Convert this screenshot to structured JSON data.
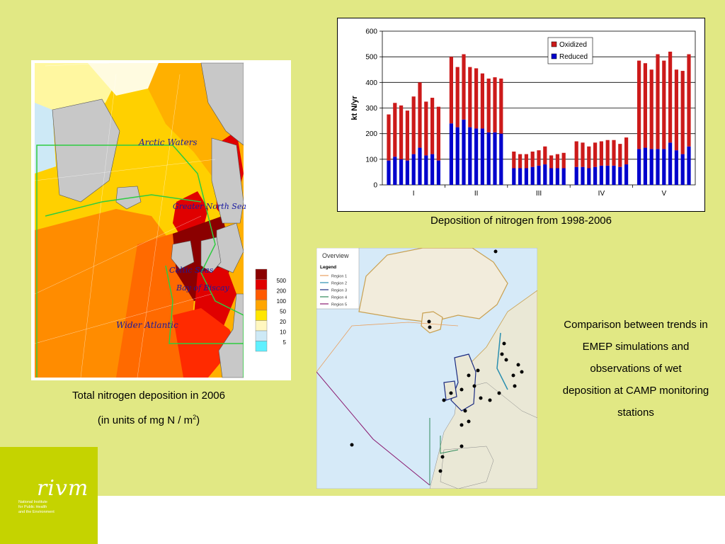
{
  "map1": {
    "labels": [
      "Arctic Waters",
      "Greater North Sea",
      "Celtic Seas",
      "Bay of Biscay",
      "Wider Atlantic"
    ],
    "legend": [
      "500",
      "200",
      "100",
      "50",
      "20",
      "10",
      "5"
    ],
    "legend_colors": [
      "#8b0000",
      "#e00000",
      "#ff5a00",
      "#ffa500",
      "#ffe600",
      "#fff7c0",
      "#cde9f6",
      "#5ff0ff"
    ],
    "caption_line1": "Total nitrogen deposition in 2006",
    "caption_line2_a": "(in units of mg N / m",
    "caption_line2_sup": "2",
    "caption_line2_b": ")"
  },
  "chart_data": {
    "type": "bar",
    "ylabel": "kt N/yr",
    "ylim": [
      0,
      600
    ],
    "yticks": [
      "0",
      "100",
      "200",
      "300",
      "400",
      "500",
      "600"
    ],
    "groups": [
      "I",
      "II",
      "III",
      "IV",
      "V"
    ],
    "series": [
      {
        "name": "Oxidized",
        "color": "#cc1a1a",
        "values": [
          [
            180,
            210,
            210,
            195,
            225,
            255,
            210,
            220,
            210
          ],
          [
            260,
            235,
            255,
            235,
            235,
            215,
            210,
            215,
            215
          ],
          [
            65,
            55,
            55,
            60,
            60,
            70,
            50,
            55,
            60
          ],
          [
            100,
            95,
            85,
            95,
            95,
            100,
            100,
            90,
            105
          ],
          [
            345,
            330,
            310,
            370,
            345,
            355,
            315,
            325,
            360
          ]
        ]
      },
      {
        "name": "Reduced",
        "color": "#0000cc",
        "values": [
          [
            95,
            110,
            100,
            95,
            120,
            145,
            115,
            120,
            95
          ],
          [
            240,
            225,
            255,
            225,
            220,
            220,
            205,
            205,
            200
          ],
          [
            65,
            65,
            65,
            70,
            75,
            80,
            65,
            65,
            65
          ],
          [
            70,
            70,
            65,
            70,
            75,
            75,
            75,
            70,
            80
          ],
          [
            140,
            145,
            140,
            140,
            140,
            165,
            135,
            120,
            150
          ]
        ]
      }
    ],
    "legend_position": "top-right",
    "caption": "Deposition of nitrogen from 1998-2006"
  },
  "map2": {
    "title": "Overview",
    "legend_title": "Legend",
    "regions": [
      {
        "name": "Region 1",
        "color": "#e8a060"
      },
      {
        "name": "Region 2",
        "color": "#2a8fb0"
      },
      {
        "name": "Region 3",
        "color": "#1a2a80"
      },
      {
        "name": "Region 4",
        "color": "#2e8a5a"
      },
      {
        "name": "Region 5",
        "color": "#8a1a70"
      }
    ]
  },
  "caption3": [
    "Comparison between trends in",
    "EMEP simulations and",
    "observations of wet",
    "deposition at CAMP monitoring",
    "stations"
  ],
  "logo": {
    "mark": "rivm",
    "sub": [
      "National Institute",
      "for Public Health",
      "and the Environment"
    ]
  }
}
